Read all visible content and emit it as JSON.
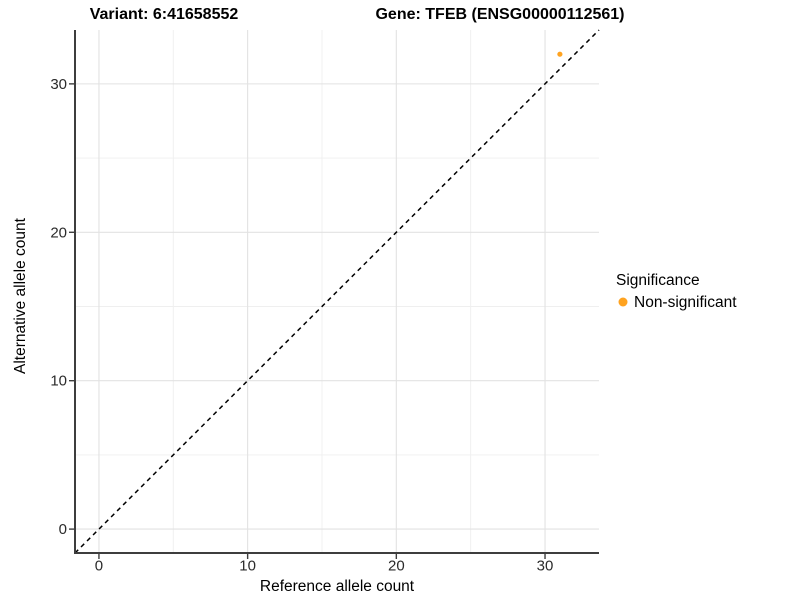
{
  "titles": {
    "variant": "Variant: 6:41658552",
    "gene": "Gene: TFEB (ENSG00000112561)"
  },
  "chart_data": {
    "type": "scatter",
    "xlabel": "Reference allele count",
    "ylabel": "Alternative allele count",
    "xlim": [
      -1.61,
      33.63
    ],
    "ylim": [
      -1.61,
      33.63
    ],
    "xticks": [
      0,
      10,
      20,
      30
    ],
    "yticks": [
      0,
      10,
      20,
      30
    ],
    "xticks_minor": [
      5,
      15,
      25
    ],
    "yticks_minor": [
      5,
      15,
      25
    ],
    "grid": true,
    "identity_line": {
      "equation": "y = x",
      "style": "dashed",
      "color": "#000000"
    },
    "series": [
      {
        "name": "Non-significant",
        "color": "#FFA320",
        "points": [
          {
            "x": 31,
            "y": 32
          }
        ]
      }
    ],
    "legend": {
      "title": "Significance",
      "position": "right",
      "entries": [
        {
          "label": "Non-significant",
          "color": "#FFA320"
        }
      ]
    },
    "colors": {
      "major_grid": "#e2e2e2",
      "minor_grid": "#efefef",
      "axis_line": "#3d3d3d",
      "tick_mark": "#3d3d3d"
    }
  }
}
